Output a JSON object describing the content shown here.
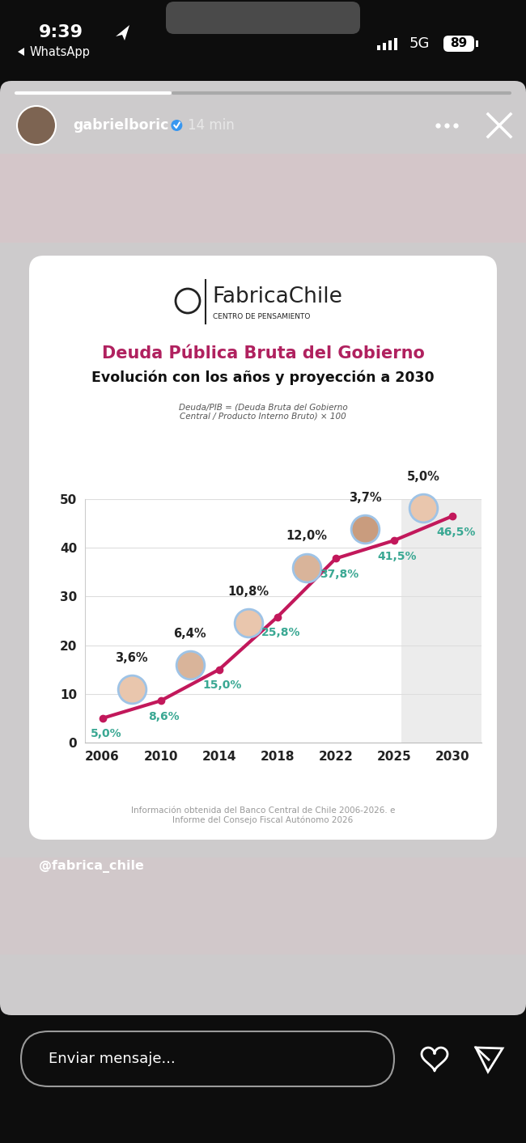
{
  "status_bar": {
    "time": "9:39",
    "back_app": "WhatsApp",
    "network": "5G",
    "battery": 89
  },
  "story": {
    "user": "gabrielboric",
    "posted": "14 min",
    "mention": "@fabrica_chile",
    "reply_placeholder": "Enviar mensaje..."
  },
  "chart_data": {
    "type": "line",
    "brand": "FabricaChile",
    "brand_subtitle": "CENTRO DE PENSAMIENTO",
    "title": "Deuda Pública Bruta del Gobierno",
    "subtitle": "Evolución con los años y proyección a 2030",
    "formula": "Deuda/PIB = (Deuda Bruta del Gobierno\nCentral / Producto Interno Bruto) × 100",
    "source": "Información obtenida del Banco Central de Chile 2006-2026. e\nInforme del Consejo Fiscal Autónomo 2026",
    "categories": [
      "2006",
      "2010",
      "2014",
      "2018",
      "2022",
      "2025",
      "2030"
    ],
    "values": [
      5.0,
      8.6,
      15.0,
      25.8,
      37.8,
      41.5,
      46.5
    ],
    "value_labels": [
      "5,0%",
      "8,6%",
      "15,0%",
      "25,8%",
      "37,8%",
      "41,5%",
      "46,5%"
    ],
    "data_labels": true,
    "color": "#c2185b",
    "marker": "circle",
    "line_style": "solid",
    "changes": {
      "values": [
        3.6,
        6.4,
        10.8,
        12.0,
        3.7,
        5.0
      ],
      "value_labels": [
        "3,6%",
        "6,4%",
        "10,8%",
        "12,0%",
        "3,7%",
        "5,0%"
      ]
    },
    "projection": {
      "from": "2025",
      "to": "2030"
    },
    "ylim": [
      0,
      50
    ],
    "yticks": [
      0,
      10,
      20,
      30,
      40,
      50
    ],
    "grid": true
  }
}
